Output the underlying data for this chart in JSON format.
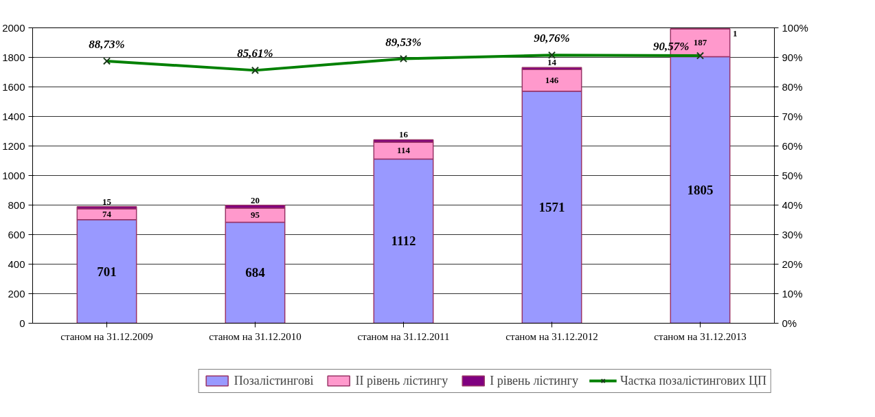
{
  "chart_data": {
    "type": "bar",
    "stacked": true,
    "categories": [
      "станом на 31.12.2009",
      "станом на 31.12.2010",
      "станом на 31.12.2011",
      "станом на 31.12.2012",
      "станом на 31.12.2013"
    ],
    "series": [
      {
        "name": "Позалістингові",
        "color": "#9999ff",
        "values": [
          701,
          684,
          1112,
          1571,
          1805
        ],
        "value_labels": [
          "701",
          "684",
          "1112",
          "1571",
          "1805"
        ]
      },
      {
        "name": "ІІ рівень лістингу",
        "color": "#ff99cc",
        "values": [
          74,
          95,
          114,
          146,
          187
        ],
        "value_labels": [
          "74",
          "95",
          "114",
          "146",
          "187"
        ]
      },
      {
        "name": "І рівень лістингу",
        "color": "#800080",
        "values": [
          15,
          20,
          16,
          14,
          1
        ],
        "value_labels": [
          "15",
          "20",
          "16",
          "14",
          "1"
        ]
      },
      {
        "name": "Частка позалістингових ЦП",
        "color": "#008000",
        "type": "line",
        "axis": "y2",
        "marker": "cross",
        "values": [
          88.73,
          85.61,
          89.53,
          90.76,
          90.57
        ],
        "value_labels": [
          "88,73%",
          "85,61%",
          "89,53%",
          "90,76%",
          "90,57%"
        ]
      }
    ],
    "ylim": [
      0,
      2000
    ],
    "yticks": [
      0,
      200,
      400,
      600,
      800,
      1000,
      1200,
      1400,
      1600,
      1800,
      2000
    ],
    "y2lim": [
      0,
      100
    ],
    "y2ticks": [
      {
        "value": 0,
        "label": "0%"
      },
      {
        "value": 10,
        "label": "10%"
      },
      {
        "value": 20,
        "label": "20%"
      },
      {
        "value": 30,
        "label": "30%"
      },
      {
        "value": 40,
        "label": "40%"
      },
      {
        "value": 50,
        "label": "50%"
      },
      {
        "value": 60,
        "label": "60%"
      },
      {
        "value": 70,
        "label": "70%"
      },
      {
        "value": 80,
        "label": "80%"
      },
      {
        "value": 90,
        "label": "90%"
      },
      {
        "value": 100,
        "label": "100%"
      }
    ],
    "grid": "y",
    "legend": "bottom"
  }
}
